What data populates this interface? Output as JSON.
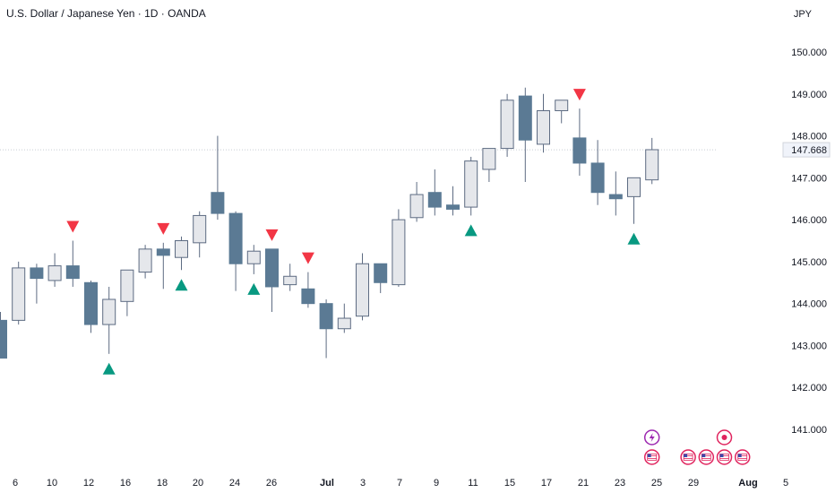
{
  "header": {
    "title": "U.S. Dollar / Japanese Yen · 1D · OANDA",
    "currency": "JPY"
  },
  "chart_data": {
    "type": "candlestick",
    "ylim": [
      140.0,
      151.0
    ],
    "y_ticks": [
      "150.000",
      "149.000",
      "148.000",
      "147.000",
      "146.000",
      "145.000",
      "144.000",
      "143.000",
      "142.000",
      "141.000"
    ],
    "current_price": "147.668",
    "x_ticks": [
      "6",
      "10",
      "12",
      "16",
      "18",
      "20",
      "24",
      "26",
      "Jul",
      "3",
      "7",
      "9",
      "11",
      "15",
      "17",
      "21",
      "23",
      "25",
      "29",
      "Aug",
      "5"
    ],
    "candles": [
      {
        "o": 143.6,
        "h": 143.8,
        "l": 142.7,
        "c": 142.7
      },
      {
        "o": 143.6,
        "h": 145.0,
        "l": 143.5,
        "c": 144.85
      },
      {
        "o": 144.85,
        "h": 144.95,
        "l": 144.0,
        "c": 144.6
      },
      {
        "o": 144.55,
        "h": 145.2,
        "l": 144.4,
        "c": 144.9
      },
      {
        "o": 144.9,
        "h": 145.5,
        "l": 144.4,
        "c": 144.6
      },
      {
        "o": 144.5,
        "h": 144.55,
        "l": 143.3,
        "c": 143.5
      },
      {
        "o": 143.5,
        "h": 144.4,
        "l": 142.8,
        "c": 144.1
      },
      {
        "o": 144.05,
        "h": 144.8,
        "l": 143.7,
        "c": 144.8
      },
      {
        "o": 144.75,
        "h": 145.4,
        "l": 144.6,
        "c": 145.3
      },
      {
        "o": 145.3,
        "h": 145.45,
        "l": 144.35,
        "c": 145.15
      },
      {
        "o": 145.1,
        "h": 145.6,
        "l": 144.8,
        "c": 145.5
      },
      {
        "o": 145.45,
        "h": 146.2,
        "l": 145.1,
        "c": 146.1
      },
      {
        "o": 146.65,
        "h": 148.0,
        "l": 146.0,
        "c": 146.15
      },
      {
        "o": 146.15,
        "h": 146.2,
        "l": 144.3,
        "c": 144.95
      },
      {
        "o": 144.95,
        "h": 145.4,
        "l": 144.7,
        "c": 145.25
      },
      {
        "o": 145.3,
        "h": 145.3,
        "l": 143.8,
        "c": 144.4
      },
      {
        "o": 144.45,
        "h": 144.95,
        "l": 144.3,
        "c": 144.65
      },
      {
        "o": 144.35,
        "h": 144.75,
        "l": 143.9,
        "c": 144.0
      },
      {
        "o": 144.0,
        "h": 144.1,
        "l": 142.7,
        "c": 143.4
      },
      {
        "o": 143.4,
        "h": 144.0,
        "l": 143.3,
        "c": 143.65
      },
      {
        "o": 143.7,
        "h": 145.2,
        "l": 143.6,
        "c": 144.95
      },
      {
        "o": 144.95,
        "h": 144.95,
        "l": 144.25,
        "c": 144.5
      },
      {
        "o": 144.45,
        "h": 146.25,
        "l": 144.4,
        "c": 146.0
      },
      {
        "o": 146.05,
        "h": 146.9,
        "l": 145.95,
        "c": 146.6
      },
      {
        "o": 146.65,
        "h": 147.2,
        "l": 146.1,
        "c": 146.3
      },
      {
        "o": 146.35,
        "h": 146.8,
        "l": 146.1,
        "c": 146.25
      },
      {
        "o": 146.3,
        "h": 147.5,
        "l": 146.1,
        "c": 147.4
      },
      {
        "o": 147.2,
        "h": 147.7,
        "l": 146.9,
        "c": 147.7
      },
      {
        "o": 147.7,
        "h": 149.0,
        "l": 147.5,
        "c": 148.85
      },
      {
        "o": 148.95,
        "h": 149.15,
        "l": 146.9,
        "c": 147.9
      },
      {
        "o": 147.8,
        "h": 149.0,
        "l": 147.6,
        "c": 148.6
      },
      {
        "o": 148.6,
        "h": 148.85,
        "l": 148.3,
        "c": 148.85
      },
      {
        "o": 147.95,
        "h": 148.65,
        "l": 147.05,
        "c": 147.35
      },
      {
        "o": 147.35,
        "h": 147.9,
        "l": 146.35,
        "c": 146.65
      },
      {
        "o": 146.6,
        "h": 147.15,
        "l": 146.1,
        "c": 146.5
      },
      {
        "o": 146.55,
        "h": 147.0,
        "l": 145.9,
        "c": 147.0
      },
      {
        "o": 146.95,
        "h": 147.95,
        "l": 146.85,
        "c": 147.67
      }
    ],
    "signals": [
      {
        "candle": 4,
        "type": "sell"
      },
      {
        "candle": 6,
        "type": "buy"
      },
      {
        "candle": 9,
        "type": "sell"
      },
      {
        "candle": 10,
        "type": "buy"
      },
      {
        "candle": 14,
        "type": "buy"
      },
      {
        "candle": 15,
        "type": "sell"
      },
      {
        "candle": 17,
        "type": "sell"
      },
      {
        "candle": 26,
        "type": "buy"
      },
      {
        "candle": 32,
        "type": "sell"
      },
      {
        "candle": 35,
        "type": "buy"
      }
    ],
    "events": [
      {
        "slot": 36,
        "row": 1,
        "icon": "lightning-icon"
      },
      {
        "slot": 36,
        "row": 2,
        "icon": "us-flag-icon"
      },
      {
        "slot": 38,
        "row": 2,
        "icon": "us-flag-icon"
      },
      {
        "slot": 39,
        "row": 2,
        "icon": "us-flag-icon"
      },
      {
        "slot": 40,
        "row": 1,
        "icon": "record-icon"
      },
      {
        "slot": 40,
        "row": 2,
        "icon": "us-flag-icon"
      },
      {
        "slot": 41,
        "row": 2,
        "icon": "us-flag-icon"
      }
    ],
    "colors": {
      "up_fill": "#e5e7eb",
      "up_border": "#5d6b82",
      "down_fill": "#5b7a94",
      "wick": "#5d6b82",
      "buy": "#089981",
      "sell": "#f23645",
      "event": "#e0245e",
      "lightning": "#9c27b0",
      "bg": "#ffffff"
    }
  }
}
